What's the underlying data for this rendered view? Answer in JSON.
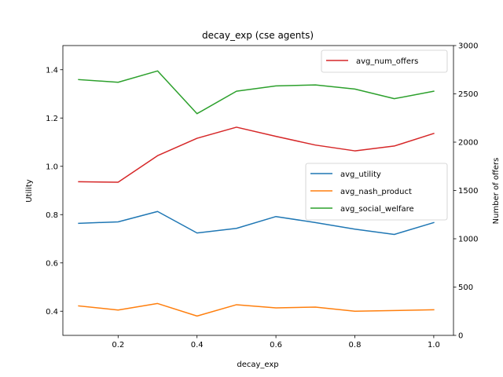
{
  "chart_data": {
    "type": "line",
    "title": "decay_exp (cse agents)",
    "xlabel": "decay_exp",
    "ylabel": "Utility",
    "y2label": "Number of offers",
    "x": [
      0.1,
      0.2,
      0.3,
      0.4,
      0.5,
      0.6,
      0.7,
      0.8,
      0.9,
      1.0
    ],
    "xlim": [
      0.06,
      1.05
    ],
    "ylim": [
      0.3,
      1.5
    ],
    "y2lim": [
      0,
      3000
    ],
    "xticks": [
      "0.2",
      "0.4",
      "0.6",
      "0.8",
      "1.0"
    ],
    "yticks": [
      "0.4",
      "0.6",
      "0.8",
      "1.0",
      "1.2",
      "1.4"
    ],
    "y2ticks": [
      "0",
      "500",
      "1000",
      "1500",
      "2000",
      "2500",
      "3000"
    ],
    "grid": false,
    "series": [
      {
        "name": "avg_utility",
        "axis": "left",
        "color": "#1f77b4",
        "values": [
          0.764,
          0.77,
          0.813,
          0.724,
          0.743,
          0.792,
          0.767,
          0.74,
          0.718,
          0.767
        ]
      },
      {
        "name": "avg_nash_product",
        "axis": "left",
        "color": "#ff7f0e",
        "values": [
          0.422,
          0.405,
          0.432,
          0.38,
          0.427,
          0.414,
          0.417,
          0.4,
          0.403,
          0.406
        ]
      },
      {
        "name": "avg_social_welfare",
        "axis": "left",
        "color": "#2ca02c",
        "values": [
          1.359,
          1.348,
          1.395,
          1.218,
          1.311,
          1.333,
          1.337,
          1.32,
          1.28,
          1.311
        ]
      },
      {
        "name": "avg_num_offers",
        "axis": "right",
        "color": "#d62728",
        "values": [
          1590,
          1585,
          1860,
          2040,
          2155,
          2060,
          1970,
          1910,
          1960,
          2090
        ]
      }
    ],
    "legends": [
      {
        "placement": "upper-right",
        "entries": [
          "avg_num_offers"
        ]
      },
      {
        "placement": "center-right",
        "entries": [
          "avg_utility",
          "avg_nash_product",
          "avg_social_welfare"
        ]
      }
    ]
  }
}
